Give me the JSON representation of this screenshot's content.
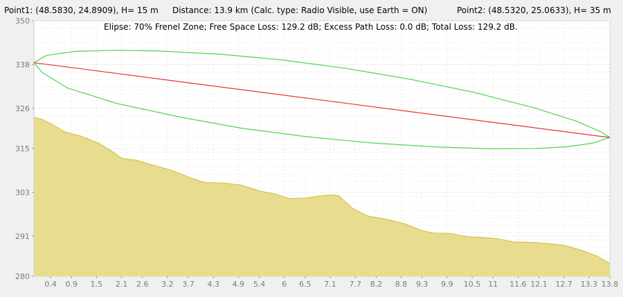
{
  "header": {
    "point1": "Point1: (48.5830, 24.8909), H= 15 m",
    "distance": "Distance: 13.9 km (Calc. type: Radio Visible, use Earth = ON)",
    "point2": "Point2: (48.5320, 25.0633), H= 35 m"
  },
  "stats": "Elipse: 70% Frenel Zone;  Free Space Loss: 129.2 dB;  Excess Path Loss: 0.0 dB;   Total Loss: 129.2 dB.",
  "colors": {
    "terrain_fill": "#e8dc8e",
    "terrain_line": "#d2bc3e",
    "los_line": "#e53030",
    "fresnel": "#4cd64c",
    "grid": "#e6e6e6"
  },
  "chart_data": {
    "type": "area",
    "xlim": [
      0,
      13.8
    ],
    "ylim": [
      280,
      350
    ],
    "x_ticks": [
      "0.4",
      "0.9",
      "1.5",
      "2.1",
      "2.6",
      "3.2",
      "3.7",
      "4.3",
      "4.9",
      "5.4",
      "6",
      "6.5",
      "7.1",
      "7.7",
      "8.2",
      "8.8",
      "9.3",
      "9.9",
      "10.5",
      "11",
      "11.6",
      "12.1",
      "12.7",
      "13.3",
      "13.8"
    ],
    "y_ticks": [
      "350",
      "338",
      "326",
      "315",
      "303",
      "291",
      "280"
    ],
    "terrain": {
      "x": [
        0,
        0.2,
        0.45,
        0.75,
        1.1,
        1.55,
        1.9,
        2.1,
        2.45,
        2.85,
        3.3,
        3.75,
        4.1,
        4.6,
        5.0,
        5.4,
        5.8,
        6.1,
        6.5,
        6.9,
        7.15,
        7.3,
        7.45,
        7.65,
        8.0,
        8.5,
        8.9,
        9.3,
        9.6,
        10.0,
        10.4,
        10.8,
        11.1,
        11.5,
        11.9,
        12.3,
        12.7,
        13.1,
        13.5,
        13.8
      ],
      "elevation": [
        323.5,
        323.0,
        321.5,
        319.5,
        318.5,
        316.5,
        314.0,
        312.3,
        311.8,
        310.5,
        309.0,
        307.0,
        305.7,
        305.5,
        304.9,
        303.4,
        302.5,
        301.3,
        301.4,
        302.1,
        302.3,
        302.1,
        300.5,
        298.5,
        296.5,
        295.5,
        294.3,
        292.5,
        291.8,
        291.7,
        290.8,
        290.6,
        290.3,
        289.4,
        289.3,
        289.0,
        288.5,
        287.2,
        285.5,
        283.5
      ]
    },
    "line_of_sight": {
      "x": [
        0,
        13.8
      ],
      "elevation": [
        338.5,
        318.0
      ]
    },
    "fresnel_ellipse": {
      "upper": {
        "x": [
          0,
          0.3,
          1.0,
          2.0,
          3.0,
          4.5,
          6.0,
          7.5,
          9.0,
          10.5,
          12.0,
          13.0,
          13.6,
          13.8
        ],
        "elevation": [
          338.5,
          340.5,
          341.6,
          341.9,
          341.7,
          340.8,
          339.2,
          336.9,
          334.0,
          330.5,
          326.1,
          322.5,
          319.5,
          318.0
        ]
      },
      "lower": {
        "x": [
          0,
          0.2,
          0.8,
          2.0,
          3.5,
          5.0,
          6.5,
          8.0,
          9.5,
          11.0,
          12.0,
          12.8,
          13.4,
          13.8
        ],
        "elevation": [
          338.5,
          335.8,
          331.6,
          327.3,
          323.6,
          320.5,
          318.3,
          316.6,
          315.5,
          314.9,
          315.0,
          315.5,
          316.5,
          318.0
        ]
      }
    }
  }
}
